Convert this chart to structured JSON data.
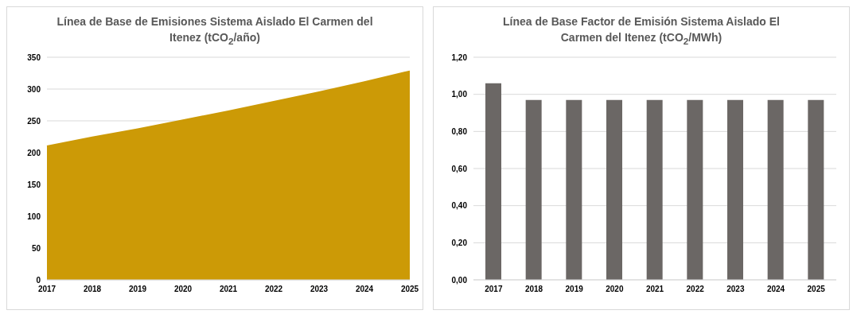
{
  "chart_data": [
    {
      "type": "area",
      "title": "Línea de Base de Emisiones Sistema Aislado El Carmen del Itenez (tCO$_{2}$/año)",
      "categories": [
        "2017",
        "2018",
        "2019",
        "2020",
        "2021",
        "2022",
        "2023",
        "2024",
        "2025"
      ],
      "series": [
        {
          "color": "#cc9a06",
          "values": [
            210,
            224,
            237,
            251,
            265,
            280,
            295,
            311,
            328
          ]
        }
      ],
      "ylim": [
        0,
        350
      ],
      "yticks": [
        0,
        50,
        100,
        150,
        200,
        250,
        300,
        350
      ],
      "grid": "y"
    },
    {
      "type": "bar",
      "title": "Línea de Base Factor de Emisión Sistema Aislado El Carmen del Itenez (tCO$_{2}$/MWh)",
      "categories": [
        "2017",
        "2018",
        "2019",
        "2020",
        "2021",
        "2022",
        "2023",
        "2024",
        "2025"
      ],
      "series": [
        {
          "color": "#6b6765",
          "values": [
            1.06,
            0.97,
            0.97,
            0.97,
            0.97,
            0.97,
            0.97,
            0.97,
            0.97
          ]
        }
      ],
      "ylim": [
        0,
        1.2
      ],
      "yticks": [
        {
          "value": 0,
          "label": "0,00"
        },
        {
          "value": 0.2,
          "label": "0,20"
        },
        {
          "value": 0.4,
          "label": "0,40"
        },
        {
          "value": 0.6,
          "label": "0,60"
        },
        {
          "value": 0.8,
          "label": "0,80"
        },
        {
          "value": 1,
          "label": "1,00"
        },
        {
          "value": 1.2,
          "label": "1,20"
        }
      ],
      "grid": "y"
    }
  ]
}
